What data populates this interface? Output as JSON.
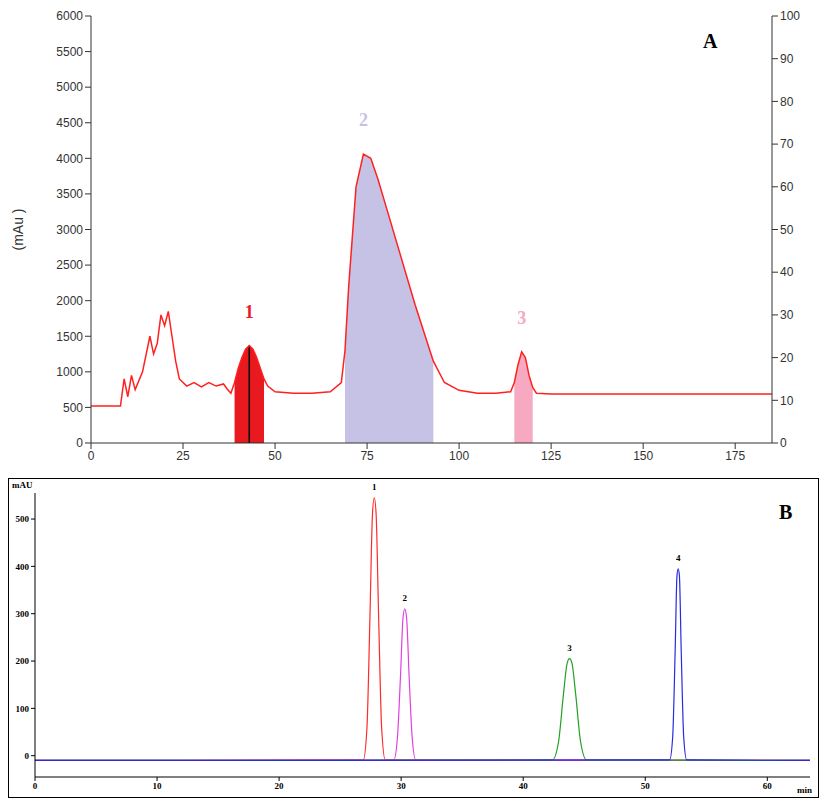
{
  "chart_data": [
    {
      "panel": "A",
      "type": "line",
      "y_label": "(mAu )",
      "color": "#ff2020",
      "x": [
        0,
        8,
        9,
        10,
        11,
        12,
        14,
        16,
        17,
        18,
        19,
        20,
        21,
        22,
        23,
        24,
        26,
        28,
        30,
        32,
        34,
        36,
        37,
        38,
        39,
        40,
        41,
        42,
        43,
        44,
        45,
        46,
        47,
        48,
        50,
        55,
        60,
        65,
        68,
        69,
        70,
        72,
        74,
        76,
        78,
        80,
        84,
        88,
        93,
        96,
        100,
        105,
        110,
        114,
        115,
        116,
        117,
        118,
        119,
        120,
        121,
        125,
        130,
        140,
        150,
        160,
        170,
        185
      ],
      "values": [
        520,
        520,
        900,
        650,
        950,
        750,
        1000,
        1500,
        1250,
        1400,
        1800,
        1650,
        1850,
        1500,
        1150,
        900,
        800,
        850,
        790,
        850,
        800,
        830,
        760,
        700,
        850,
        1050,
        1200,
        1320,
        1370,
        1320,
        1200,
        1050,
        900,
        800,
        720,
        700,
        700,
        720,
        850,
        1300,
        2200,
        3600,
        4060,
        4000,
        3700,
        3350,
        2650,
        1950,
        1150,
        850,
        740,
        700,
        700,
        720,
        850,
        1100,
        1280,
        1200,
        950,
        780,
        700,
        690,
        690,
        690,
        690,
        690,
        690,
        690
      ],
      "xlim": [
        0,
        185
      ],
      "xticks": [
        0,
        25,
        50,
        75,
        100,
        125,
        150,
        175
      ],
      "ylim": [
        0,
        6000
      ],
      "yticks": [
        0,
        500,
        1000,
        1500,
        2000,
        2500,
        3000,
        3500,
        4000,
        4500,
        5000,
        5500,
        6000
      ],
      "y2lim": [
        0,
        100
      ],
      "y2ticks": [
        0,
        10,
        20,
        30,
        40,
        50,
        60,
        70,
        80,
        90,
        100
      ],
      "fractions": [
        {
          "label": "1",
          "start": 39,
          "end": 47,
          "color": "#e8191f"
        },
        {
          "label": "2",
          "start": 69,
          "end": 93,
          "color": "#c6c2e6"
        },
        {
          "label": "3",
          "start": 115,
          "end": 120,
          "color": "#f6a9c0"
        }
      ],
      "cut_line": 43,
      "grid": false
    },
    {
      "panel": "B",
      "type": "line",
      "y_label": "mAU",
      "x_label": "min",
      "xlim": [
        0,
        63.5
      ],
      "xticks": [
        0,
        10,
        20,
        30,
        40,
        50,
        60
      ],
      "ylim": [
        -45,
        555
      ],
      "yticks": [
        0,
        100,
        200,
        300,
        400,
        500
      ],
      "grid": false,
      "series": [
        {
          "name": "1",
          "color": "#ff2a2a",
          "x": [
            0,
            26.9,
            27.2,
            27.45,
            27.65,
            27.8,
            27.95,
            28.15,
            28.4,
            28.7,
            63.5
          ],
          "values": [
            -10,
            -9,
            60,
            300,
            510,
            545,
            510,
            300,
            60,
            -9,
            -10
          ]
        },
        {
          "name": "2",
          "color": "#e040e0",
          "x": [
            0,
            29.4,
            29.7,
            29.95,
            30.15,
            30.3,
            30.45,
            30.65,
            30.9,
            31.2,
            63.5
          ],
          "values": [
            -10,
            -9,
            40,
            170,
            290,
            310,
            290,
            170,
            40,
            -9,
            -10
          ]
        },
        {
          "name": "3",
          "color": "#22a022",
          "x": [
            0,
            42.4,
            42.9,
            43.3,
            43.6,
            43.8,
            44.0,
            44.3,
            44.7,
            45.2,
            63.5
          ],
          "values": [
            -10,
            -9,
            30,
            130,
            195,
            205,
            195,
            130,
            30,
            -9,
            -10
          ]
        },
        {
          "name": "4",
          "color": "#2a2ae0",
          "x": [
            0,
            52.0,
            52.25,
            52.45,
            52.6,
            52.7,
            52.8,
            52.95,
            53.15,
            53.4,
            63.5
          ],
          "values": [
            -10,
            -9,
            40,
            220,
            380,
            395,
            380,
            220,
            40,
            -9,
            -10
          ]
        }
      ]
    }
  ]
}
